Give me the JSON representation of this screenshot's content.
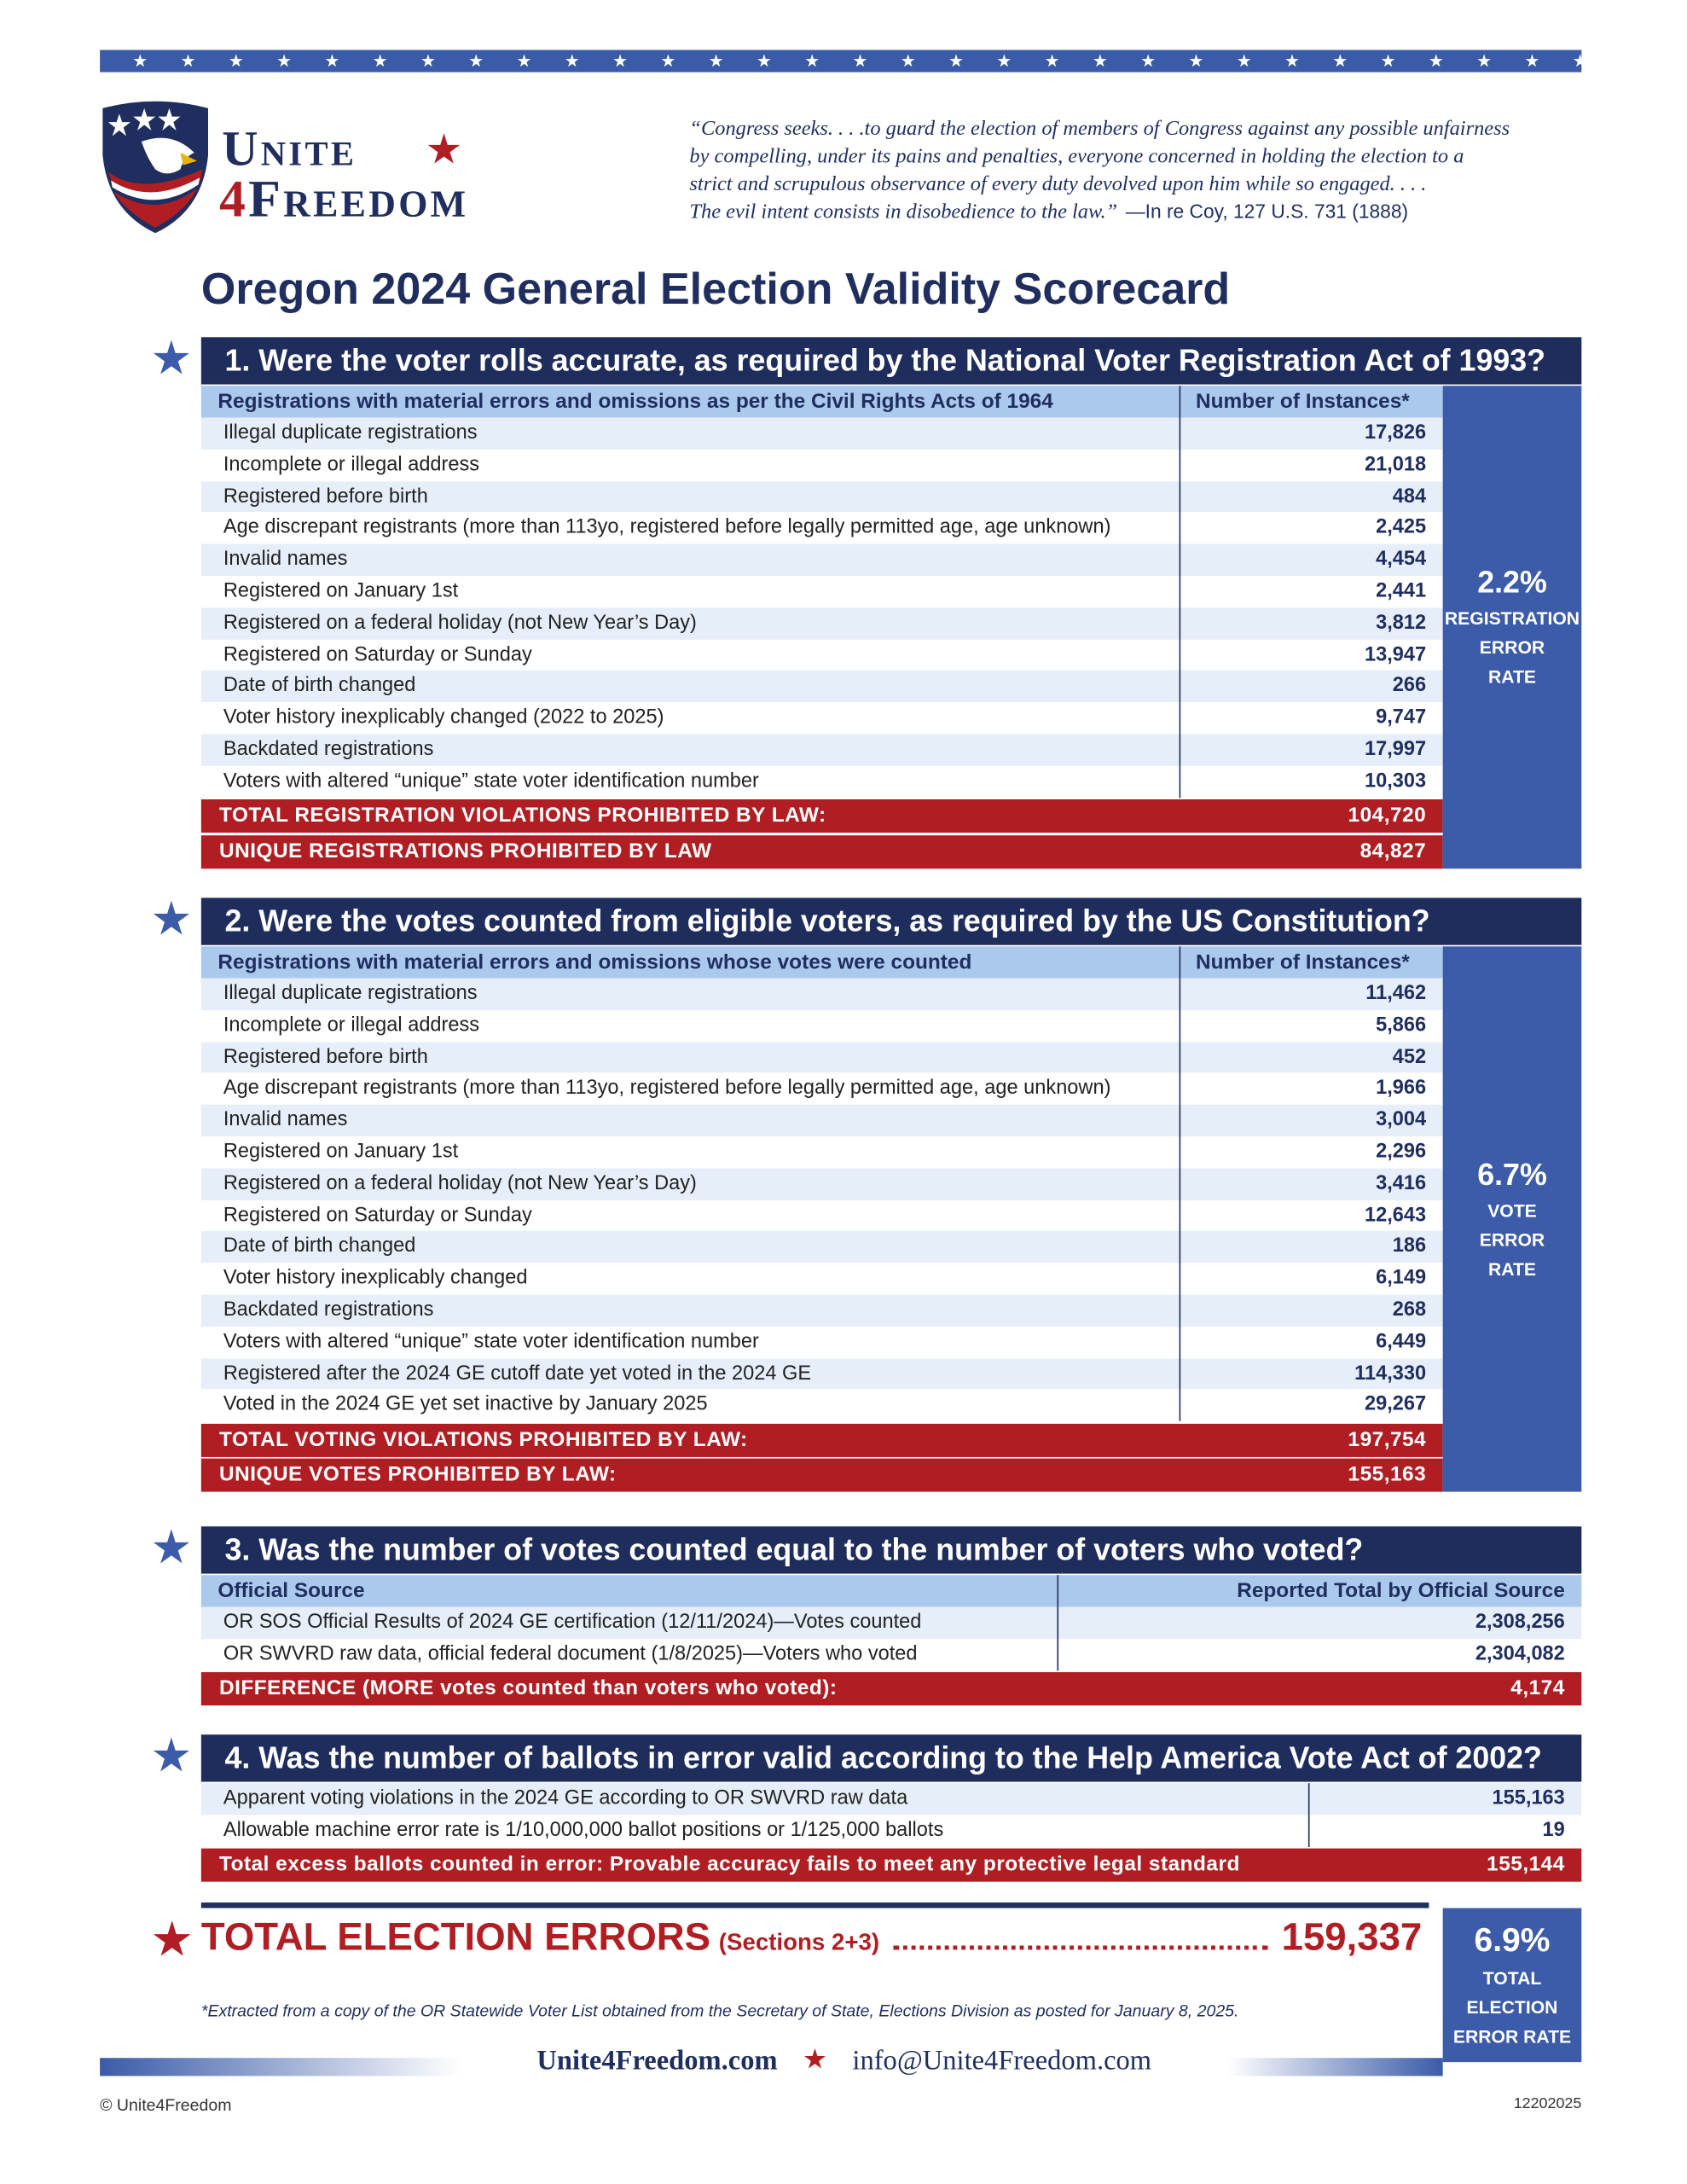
{
  "header": {
    "brand_top": "Unite",
    "brand_number": "4",
    "brand_bottom": "Freedom",
    "quote_lines": [
      "“Congress seeks. . . .to guard the election of members of Congress against any possible unfairness",
      "by compelling, under its pains and penalties, everyone concerned in holding the election to a",
      "strict and scrupulous observance of every duty devolved upon him while so engaged. . . .",
      "The evil intent consists in disobedience to the law.”"
    ],
    "citation": "—In re Coy, 127 U.S. 731 (1888)"
  },
  "title": "Oregon 2024 General Election Validity Scorecard",
  "sections": [
    {
      "question": "1. Were the voter rolls accurate, as required by the National Voter Registration Act of 1993?",
      "column_headers": [
        "Registrations with material errors and omissions as per the Civil Rights Acts of 1964",
        "Number of Instances*"
      ],
      "rows": [
        [
          "Illegal duplicate registrations",
          "17,826"
        ],
        [
          "Incomplete or illegal address",
          "21,018"
        ],
        [
          "Registered before birth",
          "484"
        ],
        [
          "Age discrepant registrants (more than 113yo, registered before legally permitted age, age unknown)",
          "2,425"
        ],
        [
          "Invalid names",
          "4,454"
        ],
        [
          "Registered on January 1st",
          "2,441"
        ],
        [
          "Registered on a federal holiday (not New Year’s Day)",
          "3,812"
        ],
        [
          "Registered on Saturday or Sunday",
          "13,947"
        ],
        [
          "Date of birth changed",
          "266"
        ],
        [
          "Voter history inexplicably changed (2022 to 2025)",
          "9,747"
        ],
        [
          "Backdated registrations",
          "17,997"
        ],
        [
          "Voters with altered “unique” state voter identification number",
          "10,303"
        ]
      ],
      "totals": [
        [
          "TOTAL REGISTRATION VIOLATIONS PROHIBITED BY LAW:",
          "104,720"
        ],
        [
          "UNIQUE REGISTRATIONS PROHIBITED BY LAW",
          "84,827"
        ]
      ],
      "stat": {
        "value": "2.2%",
        "label_lines": [
          "REGISTRATION",
          "ERROR",
          "RATE"
        ]
      }
    },
    {
      "question": "2. Were the votes counted from eligible voters, as required by the US Constitution?",
      "column_headers": [
        "Registrations with material errors and omissions whose votes were counted",
        "Number of Instances*"
      ],
      "rows": [
        [
          "Illegal duplicate registrations",
          "11,462"
        ],
        [
          "Incomplete or illegal address",
          "5,866"
        ],
        [
          "Registered before birth",
          "452"
        ],
        [
          "Age discrepant registrants (more than 113yo, registered before legally permitted age, age unknown)",
          "1,966"
        ],
        [
          "Invalid names",
          "3,004"
        ],
        [
          "Registered on January 1st",
          "2,296"
        ],
        [
          "Registered on a federal holiday (not New Year’s Day)",
          "3,416"
        ],
        [
          "Registered on Saturday or Sunday",
          "12,643"
        ],
        [
          "Date of birth changed",
          "186"
        ],
        [
          "Voter history inexplicably changed",
          "6,149"
        ],
        [
          "Backdated registrations",
          "268"
        ],
        [
          "Voters with altered “unique” state voter identification number",
          "6,449"
        ],
        [
          "Registered after the 2024 GE cutoff date yet voted in the 2024 GE",
          "114,330"
        ],
        [
          "Voted in the 2024 GE yet set inactive by January 2025",
          "29,267"
        ]
      ],
      "totals": [
        [
          "TOTAL VOTING VIOLATIONS PROHIBITED BY LAW:",
          "197,754"
        ],
        [
          "UNIQUE VOTES PROHIBITED BY LAW:",
          "155,163"
        ]
      ],
      "stat": {
        "value": "6.7%",
        "label_lines": [
          "VOTE",
          "ERROR",
          "RATE"
        ]
      }
    },
    {
      "question": "3. Was the number of votes counted equal to the number of voters who voted?",
      "column_headers": [
        "Official Source",
        "Reported Total by Official Source"
      ],
      "rows": [
        [
          "OR SOS Official Results of 2024 GE certification (12/11/2024)—Votes counted",
          "2,308,256"
        ],
        [
          "OR SWVRD raw data, official federal document (1/8/2025)—Voters who voted",
          "2,304,082"
        ]
      ],
      "totals": [
        [
          "DIFFERENCE (MORE votes counted than voters who voted):",
          "4,174"
        ]
      ]
    },
    {
      "question": "4. Was the number of ballots in error valid according to the Help America Vote Act of 2002?",
      "rows": [
        [
          "Apparent voting violations in the 2024 GE according to OR SWVRD raw data",
          "155,163"
        ],
        [
          "Allowable machine error rate is 1/10,000,000 ballot positions or 1/125,000 ballots",
          "19"
        ]
      ],
      "totals": [
        [
          "Total excess ballots counted in error: Provable accuracy fails to meet any protective legal standard",
          "155,144"
        ]
      ]
    }
  ],
  "grand_total": {
    "label": "TOTAL ELECTION ERRORS",
    "note": "(Sections 2+3)",
    "value": "159,337",
    "stat_value": "6.9%",
    "stat_label_lines": [
      "TOTAL",
      "ELECTION",
      "ERROR RATE"
    ]
  },
  "footnote": "*Extracted from a copy of the OR Statewide Voter List obtained from the Secretary of State, Elections Division as posted for January 8, 2025.",
  "footer": {
    "website": "Unite4Freedom.com",
    "email": "info@Unite4Freedom.com",
    "copyright": "© Unite4Freedom",
    "code": "12202025"
  }
}
